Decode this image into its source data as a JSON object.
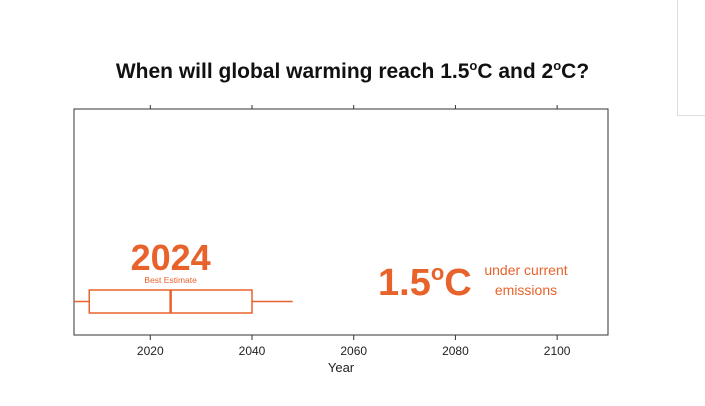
{
  "title": {
    "prefix": "When will global warming reach 1.5",
    "sup1": "o",
    "middle": "C and 2",
    "sup2": "o",
    "suffix": "C?"
  },
  "accent_color": "#e8622c",
  "chart_data": {
    "type": "box",
    "title": "When will global warming reach 1.5oC and 2oC?",
    "xlabel": "Year",
    "ylabel": "",
    "xlim": [
      2005,
      2110
    ],
    "x_ticks": [
      2020,
      2040,
      2060,
      2080,
      2100
    ],
    "x_tick_labels": [
      "2020",
      "2040",
      "2060",
      "2080",
      "2100"
    ],
    "grid": false,
    "series": [
      {
        "threshold": "1.5",
        "scenario": "under current emissions",
        "whisker_low": 2005,
        "q1": 2008,
        "median": 2024,
        "q3": 2040,
        "whisker_high": 2048,
        "best_estimate": "2024",
        "best_estimate_label": "Best Estimate",
        "color": "#e8622c"
      }
    ],
    "annotations": {
      "threshold_value": "1.5",
      "threshold_degree": "o",
      "threshold_unit": "C",
      "scenario_line1": "under current",
      "scenario_line2": "emissions"
    }
  }
}
